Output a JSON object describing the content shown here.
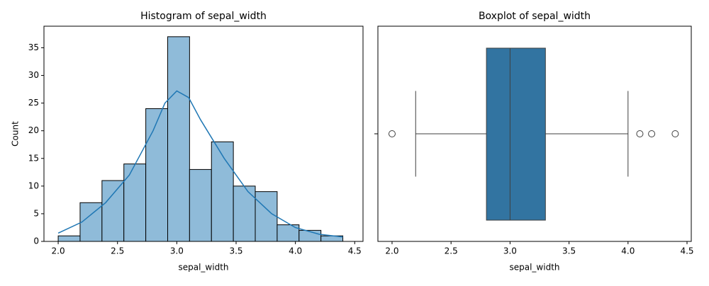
{
  "chart_data": [
    {
      "type": "histogram",
      "title": "Histogram of sepal_width",
      "xlabel": "sepal_width",
      "ylabel": "Count",
      "bins": [
        2.0,
        2.1846,
        2.3692,
        2.5538,
        2.7385,
        2.9231,
        3.1077,
        3.2923,
        3.4769,
        3.6615,
        3.8462,
        4.0308,
        4.2154,
        4.4
      ],
      "counts": [
        1,
        7,
        11,
        14,
        24,
        37,
        13,
        18,
        10,
        9,
        3,
        2,
        1
      ],
      "color": "#8fbbd9",
      "edgecolor": "#000000",
      "kde": {
        "color": "#1f77b4",
        "x": [
          2.0,
          2.2,
          2.4,
          2.6,
          2.8,
          2.9,
          3.0,
          3.1,
          3.2,
          3.4,
          3.6,
          3.8,
          4.0,
          4.2,
          4.4
        ],
        "y": [
          1.5,
          3.5,
          7,
          12,
          20,
          25,
          27.2,
          26,
          22,
          15,
          9,
          5,
          2.5,
          1.3,
          0.8
        ]
      },
      "xlim": [
        1.88,
        4.57
      ],
      "ylim": [
        0,
        38.9
      ],
      "xticks": [
        {
          "value": 2.0,
          "label": "2.0"
        },
        2.5,
        {
          "value": 3.0,
          "label": "3.0"
        },
        3.5,
        {
          "value": 4.0,
          "label": "4.0"
        },
        4.5
      ],
      "yticks": [
        0,
        5,
        10,
        15,
        20,
        25,
        30,
        35
      ]
    },
    {
      "type": "box",
      "title": "Boxplot of sepal_width",
      "xlabel": "sepal_width",
      "whisker_low": 2.2,
      "q1": 2.8,
      "median": 3.0,
      "q3": 3.3,
      "whisker_high": 4.0,
      "outliers": [
        2.0,
        4.1,
        4.2,
        4.4
      ],
      "color": "#3274a1",
      "xlim": [
        1.88,
        4.536
      ],
      "xticks": [
        {
          "value": 2.0,
          "label": "2.0"
        },
        2.5,
        {
          "value": 3.0,
          "label": "3.0"
        },
        3.5,
        {
          "value": 4.0,
          "label": "4.0"
        },
        4.5
      ]
    }
  ]
}
